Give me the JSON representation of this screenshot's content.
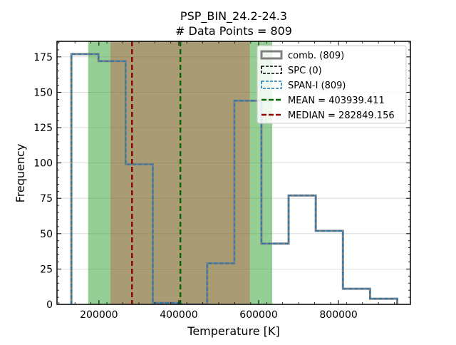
{
  "chart_data": {
    "type": "histogram",
    "title": "PSP_BIN_24.2-24.3",
    "subtitle": "# Data Points = 809",
    "xlabel": "Temperature [K]",
    "ylabel": "Frequency",
    "xlim": [
      95000,
      980000
    ],
    "ylim": [
      0,
      186
    ],
    "xticks": [
      200000,
      400000,
      600000,
      800000
    ],
    "xtick_labels": [
      "200000",
      "400000",
      "600000",
      "800000"
    ],
    "yticks": [
      0,
      25,
      50,
      75,
      100,
      125,
      150,
      175
    ],
    "ytick_labels": [
      "0",
      "25",
      "50",
      "75",
      "100",
      "125",
      "150",
      "175"
    ],
    "grid": "horizontal",
    "legend_position": "top-right",
    "bin_edges": [
      131000,
      199000,
      267000,
      335000,
      403000,
      471000,
      539000,
      607000,
      675000,
      743000,
      811000,
      879000,
      947000
    ],
    "counts": [
      177,
      172,
      99,
      1,
      0,
      29,
      144,
      43,
      77,
      52,
      11,
      4
    ],
    "shaded_bands": [
      {
        "from": 173000,
        "to": 634000,
        "color": "#2ca02c",
        "opacity": 0.5
      },
      {
        "from": 229000,
        "to": 578000,
        "color": "#d62728",
        "opacity": 0.3
      }
    ],
    "mean": 403939.411,
    "median": 282849.156,
    "legend": [
      {
        "label": "comb. (809)",
        "style": "solid-box",
        "color": "#808080"
      },
      {
        "label": "SPC (0)",
        "style": "dashed-box",
        "color": "#000000"
      },
      {
        "label": "SPAN-I (809)",
        "style": "dashed-box",
        "color": "#1f77b4"
      },
      {
        "label": "MEAN = 403939.411",
        "style": "dashed-line",
        "color": "#006400"
      },
      {
        "label": "MEDIAN = 282849.156",
        "style": "dashed-line",
        "color": "#8b0000"
      }
    ],
    "colors": {
      "combined": "#808080",
      "spc": "#000000",
      "span_i": "#1f77b4",
      "mean": "#006400",
      "median": "#8b0000",
      "grid": "#d3d3d3"
    }
  }
}
